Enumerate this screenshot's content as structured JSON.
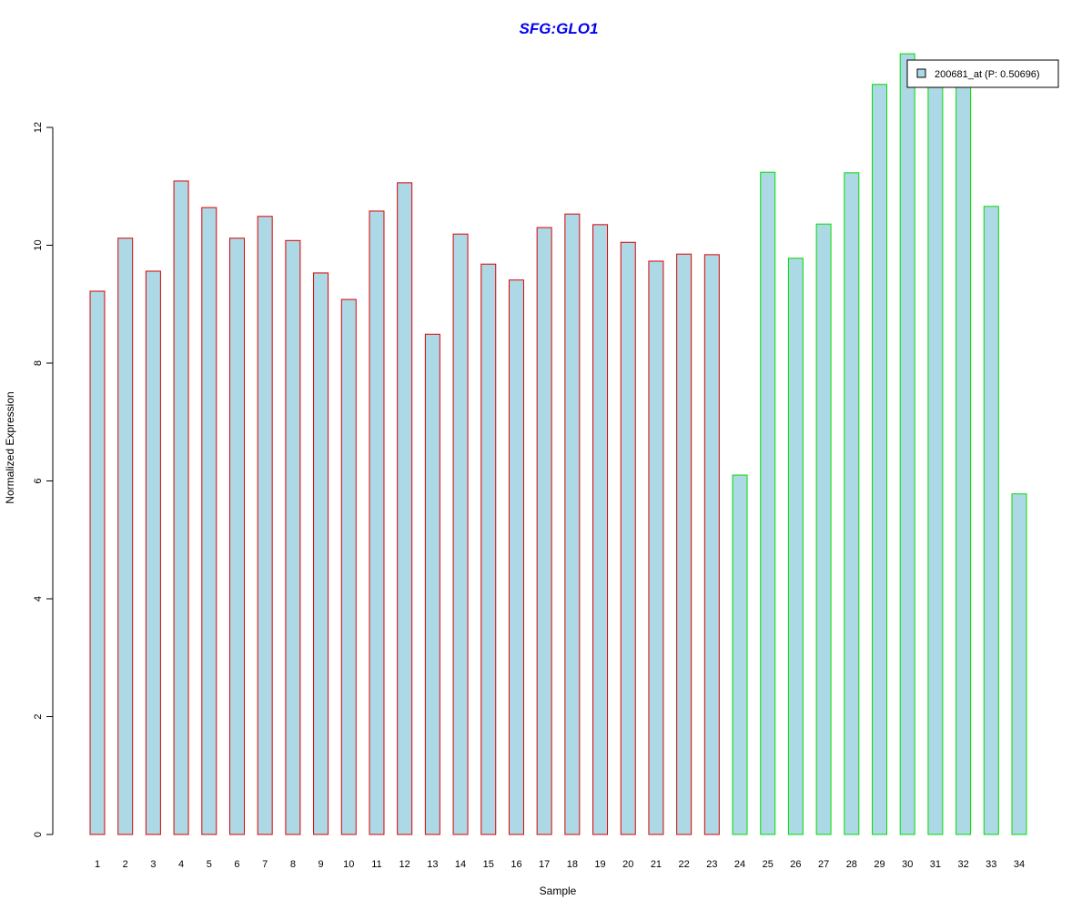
{
  "chart_data": {
    "type": "bar",
    "title": "SFG:GLO1",
    "title_color": "#0000EE",
    "xlabel": "Sample",
    "ylabel": "Normalized Expression",
    "ylim": [
      0,
      13.3
    ],
    "yticks": [
      0,
      2,
      4,
      6,
      8,
      10,
      12
    ],
    "categories": [
      "1",
      "2",
      "3",
      "4",
      "5",
      "6",
      "7",
      "8",
      "9",
      "10",
      "11",
      "12",
      "13",
      "14",
      "15",
      "16",
      "17",
      "18",
      "19",
      "20",
      "21",
      "22",
      "23",
      "24",
      "25",
      "26",
      "27",
      "28",
      "29",
      "30",
      "31",
      "32",
      "33",
      "34"
    ],
    "values": [
      9.22,
      10.12,
      9.56,
      11.09,
      10.64,
      10.12,
      10.49,
      10.08,
      9.53,
      9.08,
      10.58,
      11.06,
      8.49,
      10.19,
      9.68,
      9.41,
      10.3,
      10.53,
      10.35,
      10.05,
      9.73,
      9.85,
      9.84,
      6.1,
      11.24,
      9.78,
      10.36,
      11.23,
      12.73,
      13.25,
      12.8,
      12.9,
      10.66,
      5.78
    ],
    "groups": [
      0,
      0,
      0,
      0,
      0,
      0,
      0,
      0,
      0,
      0,
      0,
      0,
      0,
      0,
      0,
      0,
      0,
      0,
      0,
      0,
      0,
      0,
      0,
      1,
      1,
      1,
      1,
      1,
      1,
      1,
      1,
      1,
      1,
      1
    ],
    "group_border_colors": [
      "#DD0000",
      "#00DD00"
    ],
    "fill_color": "#ADD8E6",
    "legend": {
      "label": "200681_at (P: 0.50696)",
      "placement": "top-right"
    }
  }
}
